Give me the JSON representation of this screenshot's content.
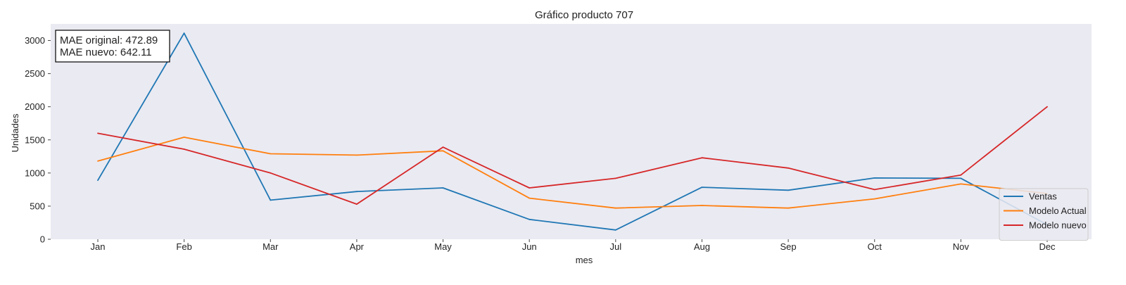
{
  "chart_data": {
    "type": "line",
    "title": "Gráfico producto 707",
    "xlabel": "mes",
    "ylabel": "Unidades",
    "categories": [
      "Jan",
      "Feb",
      "Mar",
      "Apr",
      "May",
      "Jun",
      "Jul",
      "Aug",
      "Sep",
      "Oct",
      "Nov",
      "Dec"
    ],
    "y_ticks": [
      0,
      500,
      1000,
      1500,
      2000,
      2500,
      3000
    ],
    "ylim": [
      0,
      3250
    ],
    "grid": false,
    "legend_position": "bottom-right",
    "series": [
      {
        "name": "Ventas",
        "color": "#1f77b4",
        "values": [
          890,
          3110,
          590,
          720,
          775,
          300,
          140,
          785,
          740,
          925,
          920,
          220
        ]
      },
      {
        "name": "Modelo Actual",
        "color": "#ff7f0e",
        "values": [
          1180,
          1540,
          1290,
          1270,
          1335,
          620,
          470,
          510,
          470,
          610,
          835,
          690
        ]
      },
      {
        "name": "Modelo nuevo",
        "color": "#d62728",
        "values": [
          1600,
          1360,
          1000,
          530,
          1390,
          775,
          920,
          1230,
          1075,
          750,
          970,
          2000
        ]
      }
    ],
    "annotation": {
      "line1": "MAE original: 472.89",
      "line2": "MAE nuevo: 642.11"
    },
    "plot_background": "#eaeaf2"
  }
}
